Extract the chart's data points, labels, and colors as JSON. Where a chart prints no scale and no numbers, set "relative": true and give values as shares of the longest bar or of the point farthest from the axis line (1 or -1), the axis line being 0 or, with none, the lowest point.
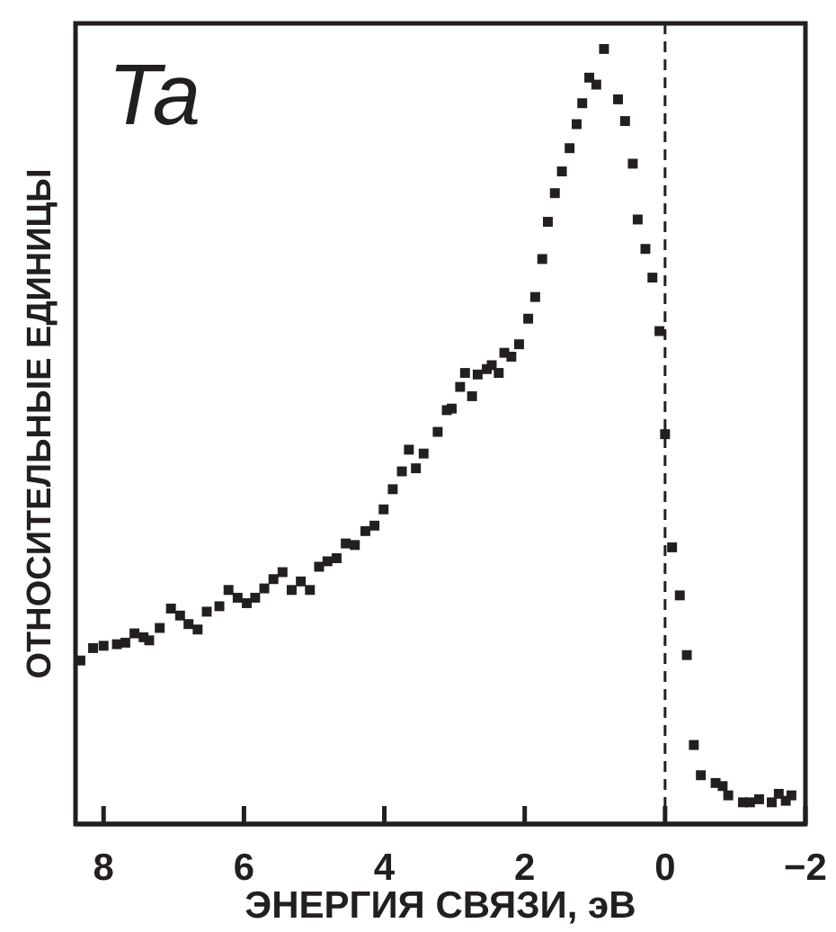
{
  "chart_data": {
    "type": "scatter",
    "title": "Ta",
    "xlabel": "ЭНЕРГИЯ СВЯЗИ, эВ",
    "ylabel": "ОТНОСИТЕЛЬНЫЕ ЕДИНИЦЫ",
    "relative": true,
    "tick_labels": "x",
    "marker": "square",
    "xlim": [
      8.4,
      -2.0
    ],
    "xticks": [
      8,
      6,
      4,
      2,
      0,
      {
        "value": -2,
        "label": "−2"
      }
    ],
    "ref_lines": [
      {
        "axis": "x",
        "value": 0,
        "line_style": "dashed"
      }
    ],
    "series": [
      {
        "color": "#231f20",
        "x": [
          8.33,
          8.15,
          8.0,
          7.81,
          7.69,
          7.56,
          7.43,
          7.35,
          7.2,
          7.04,
          6.91,
          6.79,
          6.66,
          6.53,
          6.35,
          6.22,
          6.09,
          5.96,
          5.84,
          5.71,
          5.58,
          5.45,
          5.32,
          5.19,
          5.06,
          4.93,
          4.81,
          4.68,
          4.55,
          4.42,
          4.27,
          4.14,
          4.01,
          3.88,
          3.75,
          3.65,
          3.55,
          3.44,
          3.24,
          3.11,
          3.04,
          2.92,
          2.85,
          2.75,
          2.67,
          2.54,
          2.47,
          2.37,
          2.29,
          2.19,
          2.08,
          1.95,
          1.85,
          1.75,
          1.67,
          1.57,
          1.47,
          1.36,
          1.26,
          1.18,
          1.08,
          0.98,
          0.87,
          0.67,
          0.57,
          0.46,
          0.39,
          0.28,
          0.18,
          0.08,
          0.0,
          -0.1,
          -0.21,
          -0.31,
          -0.41,
          -0.51,
          -0.72,
          -0.82,
          -0.9,
          -1.11,
          -1.21,
          -1.34,
          -1.52,
          -1.62,
          -1.72,
          -1.8
        ],
        "values": [
          0.211,
          0.227,
          0.23,
          0.232,
          0.234,
          0.246,
          0.241,
          0.237,
          0.253,
          0.278,
          0.269,
          0.258,
          0.251,
          0.274,
          0.281,
          0.302,
          0.292,
          0.285,
          0.292,
          0.304,
          0.316,
          0.325,
          0.302,
          0.313,
          0.302,
          0.332,
          0.339,
          0.343,
          0.362,
          0.36,
          0.378,
          0.385,
          0.406,
          0.432,
          0.455,
          0.483,
          0.459,
          0.478,
          0.506,
          0.534,
          0.536,
          0.564,
          0.582,
          0.552,
          0.58,
          0.587,
          0.592,
          0.582,
          0.608,
          0.603,
          0.619,
          0.652,
          0.68,
          0.729,
          0.777,
          0.814,
          0.842,
          0.872,
          0.903,
          0.93,
          0.963,
          0.954,
          1,
          0.935,
          0.907,
          0.852,
          0.78,
          0.742,
          0.705,
          0.636,
          0.503,
          0.357,
          0.295,
          0.218,
          0.102,
          0.063,
          0.053,
          0.049,
          0.037,
          0.028,
          0.028,
          0.032,
          0.028,
          0.039,
          0.03,
          0.037
        ]
      }
    ]
  }
}
